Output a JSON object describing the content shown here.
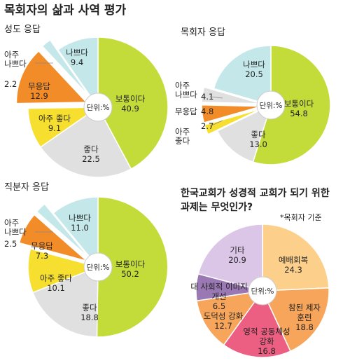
{
  "page": {
    "title": "목회자의 삶과 사역 평가",
    "unit_label": "단위:%"
  },
  "colors": {
    "green": "#c4dc3a",
    "grey": "#e0e0e0",
    "yellow": "#f6df2e",
    "orange": "#f28c28",
    "cyan": "#c4e8ea",
    "peach": "#fcd08a",
    "salmon": "#f6a55a",
    "pink": "#ec5f82",
    "lavender": "#dcc6e8",
    "purple": "#9a78b4"
  },
  "chart_data": [
    {
      "type": "pie",
      "title": "성도 응답",
      "slices": [
        {
          "label": "보통이다",
          "value": 40.9
        },
        {
          "label": "좋다",
          "value": 22.5
        },
        {
          "label": "아주 좋다",
          "value": 9.1
        },
        {
          "label": "무응답",
          "value": 12.9
        },
        {
          "label": "아주 나쁘다",
          "value": 2.2
        },
        {
          "label": "나쁘다",
          "value": 9.4
        }
      ]
    },
    {
      "type": "pie",
      "title": "목회자 응답",
      "slices": [
        {
          "label": "보통이다",
          "value": 54.8
        },
        {
          "label": "좋다",
          "value": 13.0
        },
        {
          "label": "아주 좋다",
          "value": 2.7
        },
        {
          "label": "무응답",
          "value": 4.8
        },
        {
          "label": "아주 나쁘다",
          "value": 4.1
        },
        {
          "label": "나쁘다",
          "value": 20.5
        }
      ]
    },
    {
      "type": "pie",
      "title": "직분자 응답",
      "slices": [
        {
          "label": "보통이다",
          "value": 50.2
        },
        {
          "label": "좋다",
          "value": 18.8
        },
        {
          "label": "아주 좋다",
          "value": 10.1
        },
        {
          "label": "무응답",
          "value": 7.3
        },
        {
          "label": "아주 나쁘다",
          "value": 2.5
        },
        {
          "label": "나쁘다",
          "value": 11.0
        }
      ]
    },
    {
      "type": "pie",
      "title": "한국교회가 성경적 교회가 되기 위한 과제는 무엇인가?",
      "note": "*목회자 기준",
      "slices": [
        {
          "label": "예배회복",
          "value": 24.3
        },
        {
          "label": "참된 제자 훈련",
          "value": 18.8
        },
        {
          "label": "영적 공동체성 강화",
          "value": 16.8
        },
        {
          "label": "도덕성 강화",
          "value": 12.7
        },
        {
          "label": "대 사회적 이미지 개선",
          "value": 6.5
        },
        {
          "label": "기타",
          "value": 20.9
        }
      ]
    }
  ]
}
